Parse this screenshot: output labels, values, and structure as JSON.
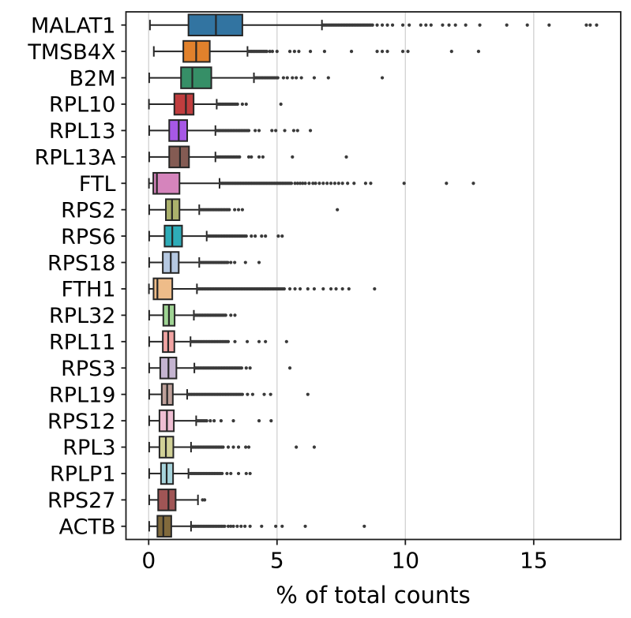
{
  "chart_data": {
    "type": "boxplot",
    "orientation": "horizontal",
    "title": "",
    "xlabel": "% of total counts",
    "ylabel": "",
    "xticks": [
      0,
      5,
      10,
      15
    ],
    "xlim": [
      -0.885,
      18.39
    ],
    "grid": true,
    "legend": null,
    "style": {
      "edge_color": "#262626",
      "flier_color": "#3a3a3a",
      "grid_color": "#d4d4d4",
      "spine_color": "#1c1c1c",
      "background": "#ffffff"
    },
    "categories": [
      "MALAT1",
      "TMSB4X",
      "B2M",
      "RPL10",
      "RPL13",
      "RPL13A",
      "FTL",
      "RPS2",
      "RPS6",
      "RPS18",
      "FTH1",
      "RPL32",
      "RPL11",
      "RPS3",
      "RPL19",
      "RPS12",
      "RPL3",
      "RPLP1",
      "RPS27",
      "ACTB"
    ],
    "series": [
      {
        "gene": "MALAT1",
        "color": "#3274a1",
        "whislo": 0.05,
        "q1": 1.55,
        "med": 2.62,
        "q3": 3.65,
        "whishi": 6.75,
        "outlier_runs": [
          [
            6.8,
            8.75
          ]
        ],
        "outliers": [
          8.9,
          9.1,
          9.3,
          9.5,
          9.9,
          10.15,
          10.6,
          10.8,
          11.0,
          11.45,
          11.7,
          11.95,
          12.35,
          12.9,
          13.95,
          14.75,
          15.6,
          17.05,
          17.2,
          17.45
        ]
      },
      {
        "gene": "TMSB4X",
        "color": "#e1812c",
        "whislo": 0.2,
        "q1": 1.35,
        "med": 1.85,
        "q3": 2.38,
        "whishi": 3.85,
        "outlier_runs": [
          [
            3.88,
            4.65
          ]
        ],
        "outliers": [
          4.72,
          4.82,
          5.0,
          5.5,
          5.68,
          5.85,
          6.3,
          6.85,
          7.9,
          8.9,
          9.1,
          9.3,
          9.9,
          10.1,
          11.8,
          12.85
        ]
      },
      {
        "gene": "B2M",
        "color": "#368f67",
        "whislo": 0.02,
        "q1": 1.26,
        "med": 1.7,
        "q3": 2.44,
        "whishi": 4.1,
        "outlier_runs": [
          [
            4.13,
            5.05
          ]
        ],
        "outliers": [
          5.25,
          5.4,
          5.6,
          5.75,
          5.95,
          6.45,
          7.0,
          9.1
        ]
      },
      {
        "gene": "RPL10",
        "color": "#c03d3e",
        "whislo": 0.01,
        "q1": 1.0,
        "med": 1.45,
        "q3": 1.75,
        "whishi": 2.65,
        "outlier_runs": [
          [
            2.68,
            3.5
          ]
        ],
        "outliers": [
          3.65,
          3.8,
          5.15
        ]
      },
      {
        "gene": "RPL13",
        "color": "#a758e5",
        "whislo": 0.02,
        "q1": 0.8,
        "med": 1.17,
        "q3": 1.5,
        "whishi": 2.6,
        "outlier_runs": [
          [
            2.64,
            3.9
          ]
        ],
        "outliers": [
          4.15,
          4.3,
          4.8,
          4.95,
          5.3,
          5.65,
          5.8,
          6.3
        ]
      },
      {
        "gene": "RPL13A",
        "color": "#845b53",
        "whislo": 0.02,
        "q1": 0.8,
        "med": 1.22,
        "q3": 1.57,
        "whishi": 2.6,
        "outlier_runs": [
          [
            2.64,
            3.55
          ]
        ],
        "outliers": [
          3.9,
          4.0,
          4.3,
          4.45,
          5.6,
          7.7
        ]
      },
      {
        "gene": "FTL",
        "color": "#d584bc",
        "whislo": 0.01,
        "q1": 0.18,
        "med": 0.32,
        "q3": 1.2,
        "whishi": 2.76,
        "outlier_runs": [
          [
            2.8,
            5.6
          ]
        ],
        "outliers": [
          5.7,
          5.8,
          5.9,
          6.0,
          6.1,
          6.25,
          6.4,
          6.5,
          6.65,
          6.8,
          6.95,
          7.1,
          7.25,
          7.4,
          7.55,
          7.75,
          8.0,
          8.45,
          8.65,
          9.95,
          11.6,
          12.65
        ]
      },
      {
        "gene": "RPS2",
        "color": "#abb16c",
        "whislo": 0.02,
        "q1": 0.67,
        "med": 0.91,
        "q3": 1.2,
        "whishi": 1.97,
        "outlier_runs": [
          [
            2.0,
            3.15
          ]
        ],
        "outliers": [
          3.35,
          3.5,
          3.65,
          7.35
        ]
      },
      {
        "gene": "RPS6",
        "color": "#2eacb8",
        "whislo": 0.02,
        "q1": 0.62,
        "med": 0.92,
        "q3": 1.3,
        "whishi": 2.26,
        "outlier_runs": [
          [
            2.3,
            3.85
          ]
        ],
        "outliers": [
          4.0,
          4.15,
          4.4,
          4.55,
          5.05,
          5.2
        ]
      },
      {
        "gene": "RPS18",
        "color": "#b5c8e1",
        "whislo": 0.02,
        "q1": 0.55,
        "med": 0.86,
        "q3": 1.17,
        "whishi": 1.97,
        "outlier_runs": [
          [
            2.0,
            3.1
          ]
        ],
        "outliers": [
          3.2,
          3.35,
          3.77,
          4.3
        ]
      },
      {
        "gene": "FTH1",
        "color": "#eebc89",
        "whislo": 0.01,
        "q1": 0.19,
        "med": 0.34,
        "q3": 0.92,
        "whishi": 1.88,
        "outlier_runs": [
          [
            1.92,
            5.3
          ]
        ],
        "outliers": [
          5.5,
          5.7,
          5.9,
          6.2,
          6.45,
          6.8,
          7.1,
          7.3,
          7.55,
          7.8,
          8.8
        ]
      },
      {
        "gene": "RPL32",
        "color": "#9fd494",
        "whislo": 0.02,
        "q1": 0.57,
        "med": 0.79,
        "q3": 1.01,
        "whishi": 1.76,
        "outlier_runs": [
          [
            1.8,
            3.05
          ]
        ],
        "outliers": [
          3.2,
          3.36
        ]
      },
      {
        "gene": "RPL11",
        "color": "#f2a4a3",
        "whislo": 0.02,
        "q1": 0.55,
        "med": 0.76,
        "q3": 1.0,
        "whishi": 1.63,
        "outlier_runs": [
          [
            1.66,
            3.15
          ]
        ],
        "outliers": [
          3.36,
          3.84,
          4.3,
          4.55,
          5.37
        ]
      },
      {
        "gene": "RPS3",
        "color": "#c4b4d0",
        "whislo": 0.02,
        "q1": 0.45,
        "med": 0.77,
        "q3": 1.08,
        "whishi": 1.78,
        "outlier_runs": [
          [
            1.82,
            3.65
          ]
        ],
        "outliers": [
          3.8,
          3.95,
          5.5
        ]
      },
      {
        "gene": "RPL19",
        "color": "#bea09a",
        "whislo": 0.02,
        "q1": 0.51,
        "med": 0.72,
        "q3": 0.94,
        "whishi": 1.5,
        "outlier_runs": [
          [
            1.55,
            3.7
          ]
        ],
        "outliers": [
          3.85,
          4.05,
          4.5,
          4.75,
          6.2
        ]
      },
      {
        "gene": "RPS12",
        "color": "#efbed3",
        "whislo": 0.02,
        "q1": 0.42,
        "med": 0.71,
        "q3": 0.98,
        "whishi": 1.85,
        "outlier_runs": [
          [
            1.9,
            2.3
          ]
        ],
        "outliers": [
          2.4,
          2.55,
          2.82,
          3.3,
          4.3,
          4.77
        ]
      },
      {
        "gene": "RPL3",
        "color": "#d1d197",
        "whislo": 0.02,
        "q1": 0.42,
        "med": 0.67,
        "q3": 0.96,
        "whishi": 1.65,
        "outlier_runs": [
          [
            1.7,
            2.95
          ]
        ],
        "outliers": [
          3.1,
          3.3,
          3.5,
          3.78,
          3.9,
          5.75,
          6.45
        ]
      },
      {
        "gene": "RPLP1",
        "color": "#a7d4dc",
        "whislo": 0.02,
        "q1": 0.48,
        "med": 0.7,
        "q3": 0.95,
        "whishi": 1.55,
        "outlier_runs": [
          [
            1.6,
            2.9
          ]
        ],
        "outliers": [
          3.05,
          3.2,
          3.5,
          3.8,
          3.95
        ]
      },
      {
        "gene": "RPS27",
        "color": "#a05555",
        "whislo": 0.02,
        "q1": 0.37,
        "med": 0.77,
        "q3": 1.05,
        "whishi": 1.92,
        "outlier_runs": [],
        "outliers": [
          2.1,
          2.18
        ]
      },
      {
        "gene": "ACTB",
        "color": "#816a3c",
        "whislo": 0.02,
        "q1": 0.34,
        "med": 0.57,
        "q3": 0.88,
        "whishi": 1.65,
        "outlier_runs": [
          [
            1.7,
            3.0
          ]
        ],
        "outliers": [
          3.1,
          3.2,
          3.3,
          3.45,
          3.6,
          3.75,
          3.95,
          4.4,
          4.95,
          5.2,
          6.1,
          8.4
        ]
      }
    ]
  }
}
